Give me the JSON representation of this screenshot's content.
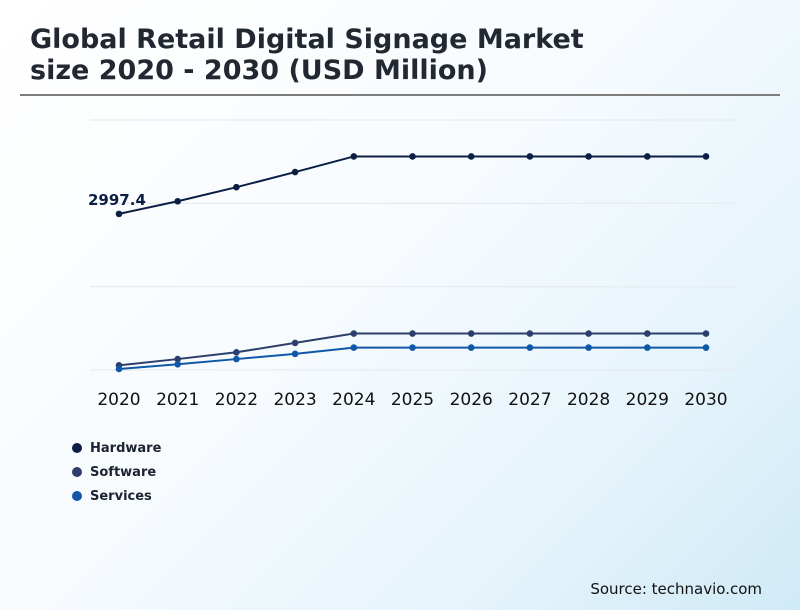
{
  "header": {
    "title_line1": "Global Retail Digital Signage Market",
    "title_line2": "size 2020 - 2030 (USD Million)"
  },
  "source": "Source: technavio.com",
  "chart_data": {
    "type": "line",
    "title": "Global Retail Digital Signage Market size 2020 - 2030 (USD Million)",
    "categories": [
      "2020",
      "2021",
      "2022",
      "2023",
      "2024",
      "2025",
      "2026",
      "2027",
      "2028",
      "2029",
      "2030"
    ],
    "ylim": [
      0,
      4800
    ],
    "grid": true,
    "legend_position": "bottom-left",
    "series": [
      {
        "name": "Hardware",
        "color": "#0b1f45",
        "values": [
          2997.4,
          3240,
          3510,
          3800,
          4100,
          4100,
          4100,
          4100,
          4100,
          4100,
          4100
        ]
      },
      {
        "name": "Software",
        "color": "#2c3e6b",
        "values": [
          90,
          210,
          340,
          520,
          700,
          700,
          700,
          700,
          700,
          700,
          700
        ]
      },
      {
        "name": "Services",
        "color": "#0f58a8",
        "values": [
          20,
          110,
          210,
          310,
          430,
          430,
          430,
          430,
          430,
          430,
          430
        ]
      }
    ],
    "annotations": [
      {
        "series": "Hardware",
        "category": "2020",
        "text": "2997.4"
      }
    ]
  }
}
